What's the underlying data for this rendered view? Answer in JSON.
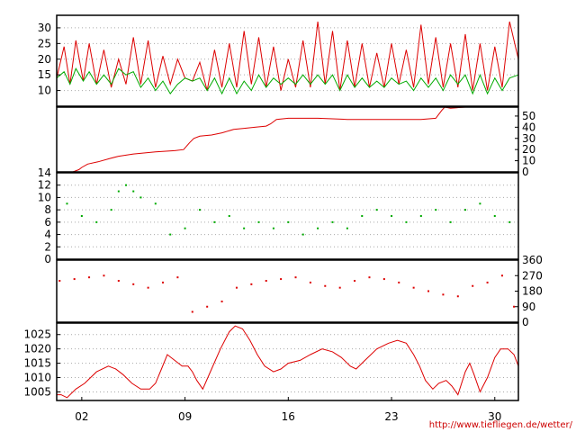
{
  "source_url": "http://www.tiefliegen.de/wetter/",
  "colors": {
    "red": "#dd0000",
    "green": "#00aa00",
    "grid": "#aaaaaa",
    "axis": "#000000"
  },
  "x_axis": {
    "range": [
      0.3,
      31.6
    ],
    "tick_labels": [
      {
        "day": 2,
        "label": "02"
      },
      {
        "day": 9,
        "label": "09"
      },
      {
        "day": 16,
        "label": "16"
      },
      {
        "day": 23,
        "label": "23"
      },
      {
        "day": 30,
        "label": "30"
      }
    ]
  },
  "chart_data": [
    {
      "type": "line",
      "title": "",
      "ylim": [
        5,
        34
      ],
      "y_ticks": [
        10,
        15,
        20,
        25,
        30
      ],
      "tick_side": "left",
      "grid": true,
      "series": [
        {
          "color": "#dd0000",
          "x": [
            0.3,
            0.8,
            1.2,
            1.6,
            2.1,
            2.5,
            3.0,
            3.5,
            4.0,
            4.5,
            5.0,
            5.5,
            6.0,
            6.5,
            7.0,
            7.5,
            8.0,
            8.5,
            9.0,
            9.5,
            10.0,
            10.5,
            11.0,
            11.5,
            12.0,
            12.5,
            13.0,
            13.5,
            14.0,
            14.5,
            15.0,
            15.5,
            16.0,
            16.5,
            17.0,
            17.5,
            18.0,
            18.5,
            19.0,
            19.5,
            20.0,
            20.5,
            21.0,
            21.5,
            22.0,
            22.5,
            23.0,
            23.5,
            24.0,
            24.5,
            25.0,
            25.5,
            26.0,
            26.5,
            27.0,
            27.5,
            28.0,
            28.5,
            29.0,
            29.5,
            30.0,
            30.5,
            31.0,
            31.6
          ],
          "y": [
            14,
            24,
            12,
            26,
            13,
            25,
            12,
            23,
            11,
            20,
            12,
            27,
            12,
            26,
            11,
            21,
            12,
            20,
            14,
            13,
            19,
            10,
            23,
            11,
            25,
            11,
            29,
            12,
            27,
            11,
            24,
            10,
            20,
            11,
            26,
            11,
            32,
            12,
            29,
            10,
            26,
            11,
            25,
            11,
            22,
            11,
            25,
            12,
            23,
            11,
            31,
            12,
            27,
            11,
            25,
            11,
            28,
            10,
            25,
            10,
            24,
            11,
            32,
            20
          ]
        },
        {
          "color": "#00aa00",
          "x": [
            0.3,
            0.8,
            1.2,
            1.6,
            2.1,
            2.5,
            3.0,
            3.5,
            4.0,
            4.5,
            5.0,
            5.5,
            6.0,
            6.5,
            7.0,
            7.5,
            8.0,
            8.5,
            9.0,
            9.5,
            10.0,
            10.5,
            11.0,
            11.5,
            12.0,
            12.5,
            13.0,
            13.5,
            14.0,
            14.5,
            15.0,
            15.5,
            16.0,
            16.5,
            17.0,
            17.5,
            18.0,
            18.5,
            19.0,
            19.5,
            20.0,
            20.5,
            21.0,
            21.5,
            22.0,
            22.5,
            23.0,
            23.5,
            24.0,
            24.5,
            25.0,
            25.5,
            26.0,
            26.5,
            27.0,
            27.5,
            28.0,
            28.5,
            29.0,
            29.5,
            30.0,
            30.5,
            31.0,
            31.6
          ],
          "y": [
            14,
            16,
            12,
            17,
            13,
            16,
            12,
            15,
            12,
            17,
            15,
            16,
            11,
            14,
            10,
            13,
            9,
            12,
            14,
            13,
            14,
            10,
            14,
            9,
            14,
            9,
            13,
            10,
            15,
            11,
            14,
            12,
            14,
            12,
            15,
            12,
            15,
            12,
            15,
            10,
            15,
            11,
            14,
            11,
            13,
            11,
            14,
            12,
            13,
            10,
            14,
            11,
            14,
            10,
            15,
            12,
            15,
            9,
            15,
            9,
            14,
            10,
            14,
            15
          ]
        }
      ]
    },
    {
      "type": "line",
      "title": "",
      "ylim": [
        0,
        58
      ],
      "y_ticks": [
        0,
        10,
        20,
        30,
        40,
        50
      ],
      "tick_side": "right",
      "grid": false,
      "series": [
        {
          "color": "#dd0000",
          "x": [
            0.3,
            1.4,
            1.8,
            2.0,
            2.4,
            3.1,
            3.9,
            4.5,
            5.5,
            7.0,
            8.3,
            8.9,
            9.3,
            9.6,
            10.0,
            10.8,
            11.5,
            12.3,
            13.0,
            13.8,
            14.5,
            14.8,
            15.2,
            16.0,
            18.0,
            20.0,
            22.0,
            24.0,
            25.0,
            26.0,
            26.4,
            26.6,
            27.0,
            28.0,
            29.0
          ],
          "y": [
            0,
            0,
            2,
            4,
            7,
            9,
            12,
            14,
            16,
            18,
            19,
            20,
            26,
            30,
            32,
            33,
            35,
            38,
            39,
            40,
            41,
            43,
            47,
            48,
            48,
            47,
            47,
            47,
            47,
            48,
            55,
            58,
            57,
            58,
            58
          ]
        }
      ]
    },
    {
      "type": "scatter",
      "title": "",
      "ylim": [
        0,
        14
      ],
      "y_ticks": [
        0,
        2,
        4,
        6,
        8,
        10,
        12,
        14
      ],
      "tick_side": "left",
      "grid": true,
      "series": [
        {
          "color": "#00aa00",
          "marker": "dot",
          "x": [
            1.0,
            2.0,
            3.0,
            4.0,
            4.5,
            5.0,
            5.5,
            6.0,
            7.0,
            8.0,
            9.0,
            10.0,
            11.0,
            12.0,
            13.0,
            14.0,
            15.0,
            16.0,
            17.0,
            18.0,
            19.0,
            20.0,
            21.0,
            22.0,
            23.0,
            24.0,
            25.0,
            26.0,
            27.0,
            28.0,
            29.0,
            30.0,
            31.0
          ],
          "y": [
            9,
            7,
            6,
            8,
            11,
            12,
            11,
            10,
            9,
            4,
            5,
            8,
            6,
            7,
            5,
            6,
            5,
            6,
            4,
            5,
            6,
            5,
            7,
            8,
            7,
            6,
            7,
            8,
            6,
            8,
            9,
            7,
            6
          ]
        }
      ]
    },
    {
      "type": "scatter",
      "title": "",
      "ylim": [
        0,
        360
      ],
      "y_ticks": [
        0,
        90,
        180,
        270,
        360
      ],
      "tick_side": "right",
      "grid": false,
      "series": [
        {
          "color": "#dd0000",
          "marker": "dot",
          "x": [
            0.5,
            1.5,
            2.5,
            3.5,
            4.5,
            5.5,
            6.5,
            7.5,
            8.5,
            9.5,
            10.5,
            11.5,
            12.5,
            13.5,
            14.5,
            15.5,
            16.5,
            17.5,
            18.5,
            19.5,
            20.5,
            21.5,
            22.5,
            23.5,
            24.5,
            25.5,
            26.5,
            27.5,
            28.5,
            29.5,
            30.5,
            31.3
          ],
          "y": [
            240,
            250,
            260,
            270,
            240,
            220,
            200,
            230,
            260,
            60,
            90,
            120,
            200,
            220,
            240,
            250,
            260,
            230,
            210,
            200,
            240,
            260,
            250,
            230,
            200,
            180,
            160,
            150,
            210,
            230,
            270,
            90
          ]
        }
      ]
    },
    {
      "type": "line",
      "title": "",
      "ylim": [
        1002,
        1029
      ],
      "y_ticks": [
        1005,
        1010,
        1015,
        1020,
        1025
      ],
      "tick_side": "left",
      "grid": true,
      "series": [
        {
          "color": "#dd0000",
          "x": [
            0.3,
            0.6,
            1.0,
            1.6,
            2.2,
            3.0,
            3.8,
            4.3,
            4.8,
            5.4,
            6.0,
            6.6,
            7.0,
            7.4,
            7.8,
            8.3,
            8.8,
            9.2,
            9.5,
            9.8,
            10.2,
            10.8,
            11.4,
            12.0,
            12.4,
            12.9,
            13.4,
            13.9,
            14.4,
            15.0,
            15.5,
            16.0,
            16.8,
            17.5,
            18.3,
            19.0,
            19.6,
            20.2,
            20.6,
            21.2,
            22.0,
            22.8,
            23.4,
            24.0,
            24.5,
            24.9,
            25.3,
            25.8,
            26.2,
            26.7,
            27.1,
            27.5,
            28.0,
            28.3,
            28.6,
            29.0,
            29.5,
            30.0,
            30.4,
            30.9,
            31.3,
            31.6
          ],
          "y": [
            1004,
            1004,
            1003,
            1006,
            1008,
            1012,
            1014,
            1013,
            1011,
            1008,
            1006,
            1006,
            1008,
            1013,
            1018,
            1016,
            1014,
            1014,
            1012,
            1009,
            1006,
            1013,
            1020,
            1026,
            1028,
            1027,
            1023,
            1018,
            1014,
            1012,
            1013,
            1015,
            1016,
            1018,
            1020,
            1019,
            1017,
            1014,
            1013,
            1016,
            1020,
            1022,
            1023,
            1022,
            1018,
            1014,
            1009,
            1006,
            1008,
            1009,
            1007,
            1004,
            1012,
            1015,
            1011,
            1005,
            1010,
            1017,
            1020,
            1020,
            1018,
            1014
          ]
        }
      ]
    }
  ]
}
